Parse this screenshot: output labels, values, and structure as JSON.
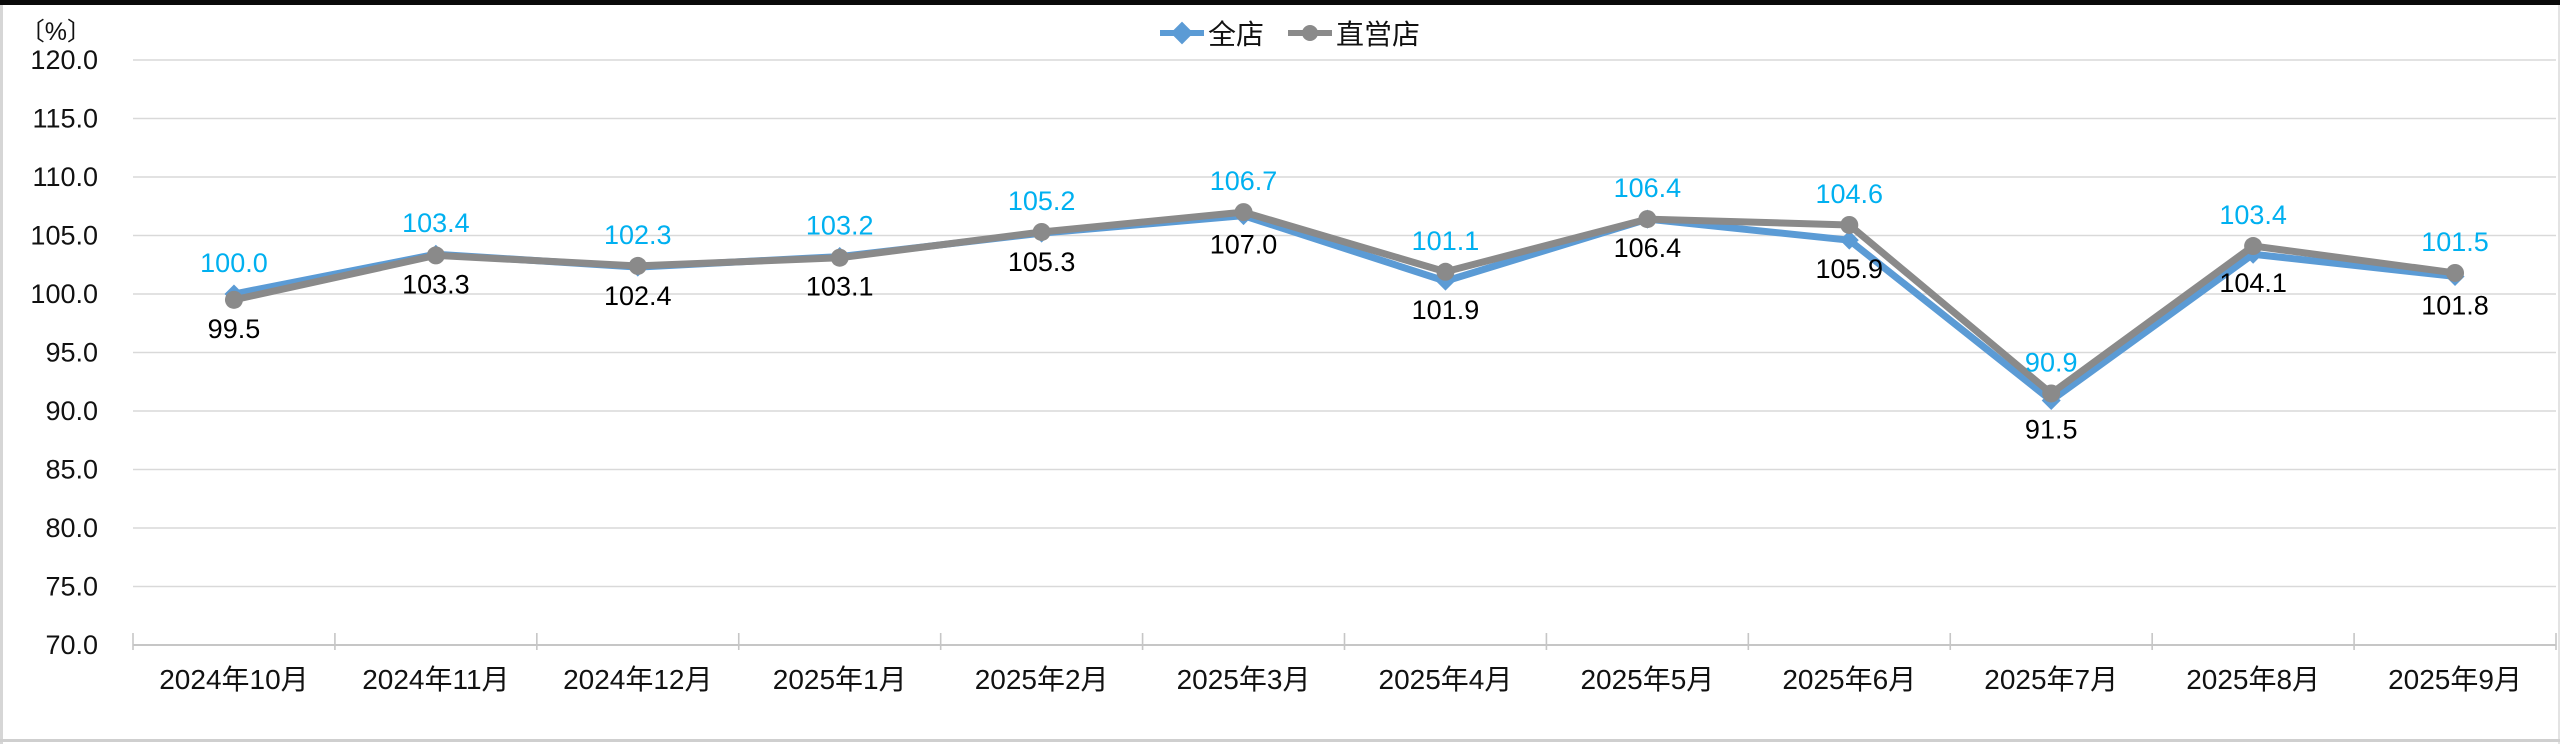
{
  "window": {
    "top_bar_color": "#0a0a0a",
    "background": "#ffffff"
  },
  "chart_data": {
    "type": "line",
    "title": "",
    "unit_label": "〔%〕",
    "xlabel": "",
    "ylabel": "",
    "ylim": [
      70.0,
      120.0
    ],
    "ytick_step": 5.0,
    "ytick_format_decimals": 1,
    "grid": true,
    "legend_position": "top-center",
    "categories": [
      "2024年10月",
      "2024年11月",
      "2024年12月",
      "2025年1月",
      "2025年2月",
      "2025年3月",
      "2025年4月",
      "2025年5月",
      "2025年6月",
      "2025年7月",
      "2025年8月",
      "2025年9月"
    ],
    "series": [
      {
        "name": "全店",
        "values": [
          100.0,
          103.4,
          102.3,
          103.2,
          105.2,
          106.7,
          101.1,
          106.4,
          104.6,
          90.9,
          103.4,
          101.5
        ],
        "line_color": "#5B9BD5",
        "marker": "diamond",
        "marker_color": "#5B9BD5",
        "data_label_color": "#00B0F0",
        "data_label_position": "above"
      },
      {
        "name": "直営店",
        "values": [
          99.5,
          103.3,
          102.4,
          103.1,
          105.3,
          107.0,
          101.9,
          106.4,
          105.9,
          91.5,
          104.1,
          101.8
        ],
        "line_color": "#8A8A8A",
        "marker": "circle",
        "marker_color": "#8A8A8A",
        "data_label_color": "#000000",
        "data_label_position": "below"
      }
    ],
    "gridline_color": "#d9d9d9",
    "axis_line_color": "#c6c6c6",
    "axis_text_color": "#111111"
  }
}
